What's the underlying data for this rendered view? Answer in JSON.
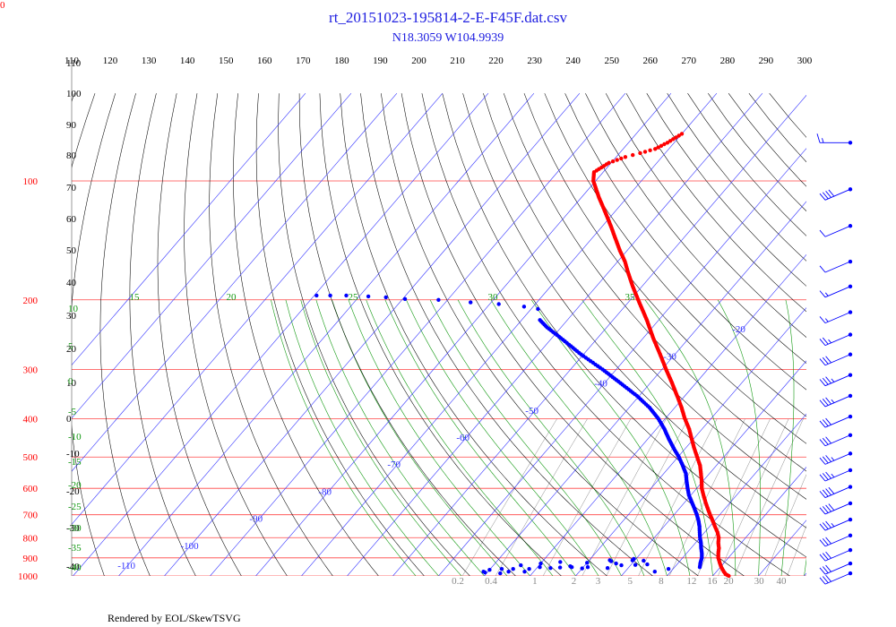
{
  "chart_data": {
    "type": "skew-t",
    "title": "rt_20151023-195814-2-E-F45F.dat.csv",
    "subtitle": "N18.3059 W104.9939",
    "footer": "Rendered by EOL/SkewTSVG",
    "corner_label": "0",
    "pressure_labels": [
      "100",
      "200",
      "300",
      "400",
      "500",
      "600",
      "700",
      "800",
      "900",
      "1000"
    ],
    "pressure_values": [
      100,
      200,
      300,
      400,
      500,
      600,
      700,
      800,
      900,
      1000
    ],
    "top_theta_labels": [
      "110",
      "120",
      "130",
      "140",
      "150",
      "160",
      "170",
      "180",
      "190",
      "200",
      "210",
      "220",
      "230",
      "240",
      "250",
      "260",
      "270",
      "280",
      "290",
      "300"
    ],
    "left_theta_labels": [
      "110",
      "100",
      "90",
      "80",
      "70",
      "60",
      "50",
      "40",
      "30",
      "20",
      "10",
      "0",
      "-10",
      "-20",
      "-30",
      "-40"
    ],
    "isotherm_labels": [
      "-110",
      "-100",
      "-90",
      "-80",
      "-70",
      "-60",
      "-50",
      "-40",
      "-30",
      "-20",
      "-10",
      "0",
      "10",
      "20",
      "30"
    ],
    "isotherm_values": [
      -110,
      -100,
      -90,
      -80,
      -70,
      -60,
      -50,
      -40,
      -30,
      -20,
      -10,
      0,
      10,
      20,
      30
    ],
    "moist_labels": [
      "15",
      "20",
      "25",
      "30",
      "35"
    ],
    "moist_left_labels": [
      "10",
      "5",
      "0",
      "-5",
      "-10",
      "-15",
      "-20",
      "-25",
      "-30",
      "-35",
      "-40"
    ],
    "mixing_labels": [
      "0.2",
      "0.4",
      "1",
      "2",
      "3",
      "5",
      "8",
      "12",
      "16",
      "20",
      "30",
      "40"
    ],
    "mixing_values": [
      0.2,
      0.4,
      1,
      2,
      3,
      5,
      8,
      12,
      16,
      20,
      30,
      40
    ],
    "temperature_profile": [
      {
        "p": 1000,
        "t": 23.5
      },
      {
        "p": 990,
        "t": 22.5
      },
      {
        "p": 975,
        "t": 21.6
      },
      {
        "p": 950,
        "t": 20.2
      },
      {
        "p": 925,
        "t": 19.0
      },
      {
        "p": 900,
        "t": 17.8
      },
      {
        "p": 875,
        "t": 16.9
      },
      {
        "p": 850,
        "t": 16.1
      },
      {
        "p": 825,
        "t": 15.0
      },
      {
        "p": 800,
        "t": 14.1
      },
      {
        "p": 775,
        "t": 12.8
      },
      {
        "p": 750,
        "t": 11.2
      },
      {
        "p": 725,
        "t": 9.6
      },
      {
        "p": 700,
        "t": 7.9
      },
      {
        "p": 675,
        "t": 6.2
      },
      {
        "p": 650,
        "t": 4.5
      },
      {
        "p": 625,
        "t": 2.8
      },
      {
        "p": 600,
        "t": 1.1
      },
      {
        "p": 575,
        "t": -0.3
      },
      {
        "p": 550,
        "t": -1.9
      },
      {
        "p": 525,
        "t": -3.6
      },
      {
        "p": 500,
        "t": -5.8
      },
      {
        "p": 475,
        "t": -8.1
      },
      {
        "p": 450,
        "t": -10.4
      },
      {
        "p": 425,
        "t": -12.8
      },
      {
        "p": 400,
        "t": -15.7
      },
      {
        "p": 375,
        "t": -18.5
      },
      {
        "p": 350,
        "t": -21.7
      },
      {
        "p": 325,
        "t": -25.2
      },
      {
        "p": 300,
        "t": -29.1
      },
      {
        "p": 275,
        "t": -33.2
      },
      {
        "p": 250,
        "t": -37.8
      },
      {
        "p": 225,
        "t": -42.6
      },
      {
        "p": 200,
        "t": -48.3
      },
      {
        "p": 185,
        "t": -52.0
      },
      {
        "p": 170,
        "t": -55.8
      },
      {
        "p": 160,
        "t": -58.4
      },
      {
        "p": 150,
        "t": -61.6
      },
      {
        "p": 140,
        "t": -64.8
      },
      {
        "p": 130,
        "t": -68.2
      },
      {
        "p": 120,
        "t": -72.0
      },
      {
        "p": 110,
        "t": -76.2
      },
      {
        "p": 100,
        "t": -80.5
      },
      {
        "p": 95,
        "t": -82.0
      },
      {
        "p": 90,
        "t": -80.5
      },
      {
        "p": 87,
        "t": -78.0
      },
      {
        "p": 85,
        "t": -75.5
      },
      {
        "p": 83,
        "t": -73.0
      },
      {
        "p": 80,
        "t": -71.5
      },
      {
        "p": 76,
        "t": -70.0
      }
    ],
    "dewpoint_profile": [
      {
        "p": 950,
        "t": 15.5
      },
      {
        "p": 925,
        "t": 14.8
      },
      {
        "p": 900,
        "t": 14.2
      },
      {
        "p": 875,
        "t": 13.3
      },
      {
        "p": 850,
        "t": 12.2
      },
      {
        "p": 825,
        "t": 11.2
      },
      {
        "p": 800,
        "t": 10.0
      },
      {
        "p": 775,
        "t": 8.9
      },
      {
        "p": 750,
        "t": 7.8
      },
      {
        "p": 725,
        "t": 6.5
      },
      {
        "p": 700,
        "t": 5.0
      },
      {
        "p": 675,
        "t": 3.3
      },
      {
        "p": 650,
        "t": 1.5
      },
      {
        "p": 625,
        "t": -0.4
      },
      {
        "p": 600,
        "t": -2.0
      },
      {
        "p": 575,
        "t": -3.6
      },
      {
        "p": 550,
        "t": -5.2
      },
      {
        "p": 525,
        "t": -7.4
      },
      {
        "p": 500,
        "t": -9.8
      },
      {
        "p": 475,
        "t": -12.6
      },
      {
        "p": 450,
        "t": -15.4
      },
      {
        "p": 425,
        "t": -18.2
      },
      {
        "p": 400,
        "t": -21.5
      },
      {
        "p": 375,
        "t": -25.5
      },
      {
        "p": 350,
        "t": -30.5
      },
      {
        "p": 325,
        "t": -36.5
      },
      {
        "p": 300,
        "t": -43.0
      },
      {
        "p": 275,
        "t": -50.5
      },
      {
        "p": 250,
        "t": -58.0
      },
      {
        "p": 235,
        "t": -63.0
      },
      {
        "p": 225,
        "t": -66.0
      }
    ],
    "dewpoint_scatter_upper": [
      {
        "p": 211,
        "t": -68.5
      },
      {
        "p": 208,
        "t": -72.0
      },
      {
        "p": 205,
        "t": -78.0
      },
      {
        "p": 203,
        "t": -84.5
      },
      {
        "p": 200,
        "t": -92.0
      },
      {
        "p": 199,
        "t": -99.5
      },
      {
        "p": 197,
        "t": -104.0
      },
      {
        "p": 196,
        "t": -108.0
      },
      {
        "p": 195,
        "t": -113.0
      },
      {
        "p": 195,
        "t": -116.5
      },
      {
        "p": 195,
        "t": -119.5
      }
    ],
    "dewpoint_scatter_lower": [
      {
        "p": 975,
        "t": 6.5
      },
      {
        "p": 960,
        "t": 9.0
      },
      {
        "p": 955,
        "t": -4.5
      },
      {
        "p": 957,
        "t": -10.0
      },
      {
        "p": 950,
        "t": -12.5
      },
      {
        "p": 952,
        "t": -15.0
      },
      {
        "p": 955,
        "t": -17.0
      },
      {
        "p": 950,
        "t": -19.5
      },
      {
        "p": 960,
        "t": -21.5
      },
      {
        "p": 975,
        "t": -22.0
      },
      {
        "p": 960,
        "t": -25.0
      },
      {
        "p": 975,
        "t": -25.5
      },
      {
        "p": 960,
        "t": -27.5
      },
      {
        "p": 965,
        "t": -30.0
      },
      {
        "p": 980,
        "t": -30.5
      },
      {
        "p": 985,
        "t": -27.0
      },
      {
        "p": 945,
        "t": -13.0
      },
      {
        "p": 950,
        "t": -9.0
      },
      {
        "p": 918,
        "t": -5.0
      },
      {
        "p": 915,
        "t": 2.0
      },
      {
        "p": 913,
        "t": -0.5
      },
      {
        "p": 922,
        "t": -16.0
      },
      {
        "p": 926,
        "t": -10.0
      },
      {
        "p": 930,
        "t": -20.0
      },
      {
        "p": 940,
        "t": -24.0
      },
      {
        "p": 975,
        "t": -31.0
      },
      {
        "p": 905,
        "t": -0.5
      },
      {
        "p": 912,
        "t": -5.5
      },
      {
        "p": 935,
        "t": 3.5
      },
      {
        "p": 938,
        "t": 1.0
      },
      {
        "p": 940,
        "t": -2.0
      },
      {
        "p": 930,
        "t": -3.5
      }
    ],
    "wind_barbs": [
      {
        "p": 80,
        "speed": 15,
        "dir": 270
      },
      {
        "p": 105,
        "speed": 40,
        "dir": 90
      },
      {
        "p": 130,
        "speed": 10,
        "dir": 240
      },
      {
        "p": 160,
        "speed": 10,
        "dir": 230
      },
      {
        "p": 185,
        "speed": 15,
        "dir": 240
      },
      {
        "p": 215,
        "speed": 15,
        "dir": 240
      },
      {
        "p": 245,
        "speed": 25,
        "dir": 230
      },
      {
        "p": 275,
        "speed": 30,
        "dir": 230
      },
      {
        "p": 310,
        "speed": 35,
        "dir": 230
      },
      {
        "p": 350,
        "speed": 35,
        "dir": 230
      },
      {
        "p": 395,
        "speed": 30,
        "dir": 230
      },
      {
        "p": 440,
        "speed": 30,
        "dir": 230
      },
      {
        "p": 490,
        "speed": 35,
        "dir": 230
      },
      {
        "p": 540,
        "speed": 35,
        "dir": 230
      },
      {
        "p": 595,
        "speed": 40,
        "dir": 230
      },
      {
        "p": 655,
        "speed": 40,
        "dir": 230
      },
      {
        "p": 720,
        "speed": 35,
        "dir": 230
      },
      {
        "p": 790,
        "speed": 30,
        "dir": 230
      },
      {
        "p": 860,
        "speed": 30,
        "dir": 230
      },
      {
        "p": 930,
        "speed": 30,
        "dir": 230
      },
      {
        "p": 985,
        "speed": 30,
        "dir": 230
      }
    ],
    "colors": {
      "temperature": "#ff0000",
      "dewpoint": "#0000ff",
      "isobar": "#ff4444",
      "isotherm": "#3333ff",
      "dry_adiabat": "#000000",
      "moist_adiabat": "#119911",
      "mixing_ratio": "#888888",
      "title": "#2020e0"
    },
    "grid": true
  }
}
